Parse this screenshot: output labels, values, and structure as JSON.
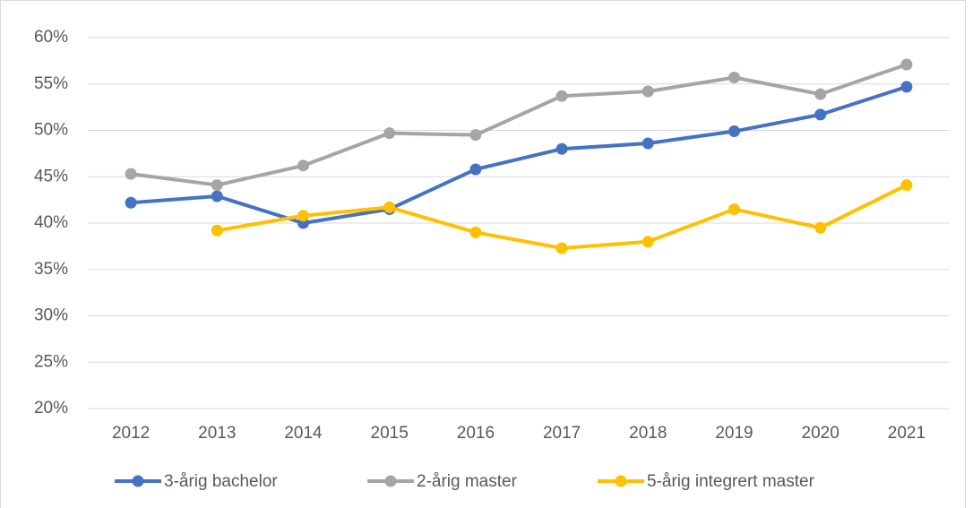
{
  "chart_data": {
    "type": "line",
    "categories": [
      "2012",
      "2013",
      "2014",
      "2015",
      "2016",
      "2017",
      "2018",
      "2019",
      "2020",
      "2021"
    ],
    "series": [
      {
        "name": "3-årig bachelor",
        "color": "#4472c4",
        "values": [
          42.2,
          42.9,
          40.0,
          41.5,
          45.8,
          48.0,
          48.6,
          49.9,
          51.7,
          54.7
        ]
      },
      {
        "name": "2-årig master",
        "color": "#a5a5a5",
        "values": [
          45.3,
          44.1,
          46.2,
          49.7,
          49.5,
          53.7,
          54.2,
          55.7,
          53.9,
          57.1
        ]
      },
      {
        "name": "5-årig integrert master",
        "color": "#ffc000",
        "values": [
          null,
          39.2,
          40.8,
          41.7,
          39.0,
          37.3,
          38.0,
          41.5,
          39.5,
          44.1
        ]
      }
    ],
    "ylim": [
      20,
      60
    ],
    "yticks": [
      {
        "value": 20,
        "label": "20%"
      },
      {
        "value": 25,
        "label": "25%"
      },
      {
        "value": 30,
        "label": "30%"
      },
      {
        "value": 35,
        "label": "35%"
      },
      {
        "value": 40,
        "label": "40%"
      },
      {
        "value": 45,
        "label": "45%"
      },
      {
        "value": 50,
        "label": "50%"
      },
      {
        "value": 55,
        "label": "55%"
      },
      {
        "value": 60,
        "label": "60%"
      }
    ],
    "grid": true
  }
}
